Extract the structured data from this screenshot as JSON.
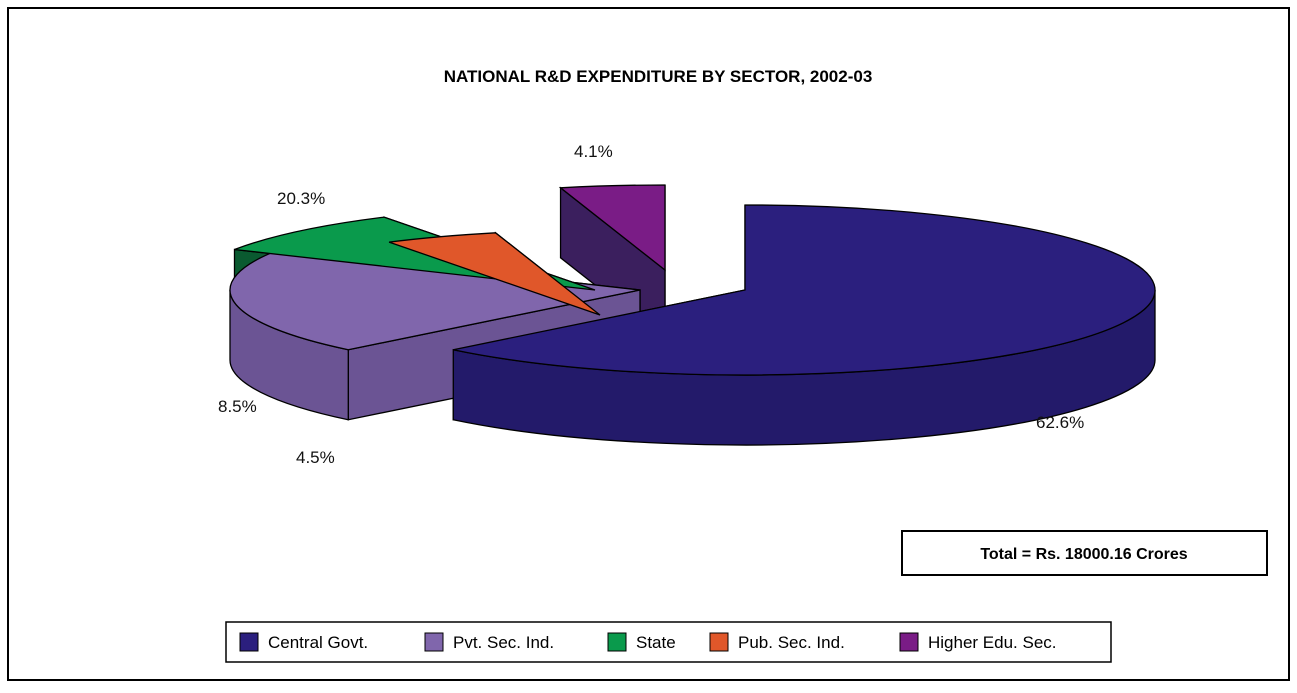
{
  "chart_data": {
    "type": "pie",
    "title": "NATIONAL R&D EXPENDITURE BY SECTOR, 2002-03",
    "slices": [
      {
        "name": "Central Govt.",
        "value": 62.6,
        "label": "62.6%",
        "color": "#2b1f7e",
        "side_color": "#231a6a"
      },
      {
        "name": "Pvt. Sec. Ind.",
        "value": 20.3,
        "label": "20.3%",
        "color": "#8066ac",
        "side_color": "#6b5494"
      },
      {
        "name": "State",
        "value": 8.5,
        "label": "8.5%",
        "color": "#0a9a4c",
        "side_color": "#0a5a30"
      },
      {
        "name": "Pub. Sec. Ind.",
        "value": 4.5,
        "label": "4.5%",
        "color": "#e0572a",
        "side_color": "#8c3326"
      },
      {
        "name": "Higher Edu. Sec.",
        "value": 4.1,
        "label": "4.1%",
        "color": "#7a1c86",
        "side_color": "#3b1f5e"
      }
    ],
    "annotation": "Total = Rs. 18000.16 Crores",
    "legend_position": "bottom"
  }
}
